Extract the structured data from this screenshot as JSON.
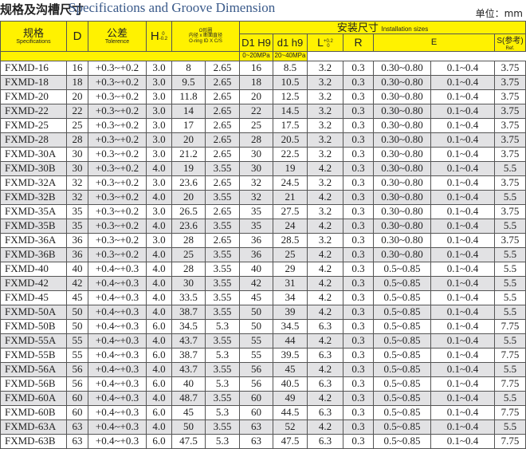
{
  "title": {
    "cn": "规格及沟槽尺寸",
    "en": "Specifications and Groove Dimension",
    "unit": "单位：mm"
  },
  "header": {
    "spec_cn": "规格",
    "spec_en": "Specifications",
    "d": "D",
    "tol_cn": "公差",
    "tol_en": "Tolerence",
    "h": "H",
    "h_sup": "0",
    "h_sub": "-0.2",
    "oring_1": "O形圈",
    "oring_2": "内径 x 断面直径",
    "oring_3": "O-ring ID X C/S",
    "install_cn": "安装尺寸",
    "install_en": "Installation sizes",
    "d1h9": "D1 H9",
    "d1h9_small": "d1 h9",
    "l": "L",
    "l_sup": "+0.2",
    "l_sub": "0",
    "r": "R",
    "e": "E",
    "e1": "0~20MPa",
    "e2": "20~40MPa",
    "s": "S(参考)",
    "s_sub": "Ref."
  },
  "rows": [
    [
      "FXMD-16",
      "16",
      "+0.3~+0.2",
      "3.0",
      "8",
      "2.65",
      "16",
      "8.5",
      "3.2",
      "0.3",
      "0.30~0.80",
      "0.1~0.4",
      "3.75"
    ],
    [
      "FXMD-18",
      "18",
      "+0.3~+0.2",
      "3.0",
      "9.5",
      "2.65",
      "18",
      "10.5",
      "3.2",
      "0.3",
      "0.30~0.80",
      "0.1~0.4",
      "3.75"
    ],
    [
      "FXMD-20",
      "20",
      "+0.3~+0.2",
      "3.0",
      "11.8",
      "2.65",
      "20",
      "12.5",
      "3.2",
      "0.3",
      "0.30~0.80",
      "0.1~0.4",
      "3.75"
    ],
    [
      "FXMD-22",
      "22",
      "+0.3~+0.2",
      "3.0",
      "14",
      "2.65",
      "22",
      "14.5",
      "3.2",
      "0.3",
      "0.30~0.80",
      "0.1~0.4",
      "3.75"
    ],
    [
      "FXMD-25",
      "25",
      "+0.3~+0.2",
      "3.0",
      "17",
      "2.65",
      "25",
      "17.5",
      "3.2",
      "0.3",
      "0.30~0.80",
      "0.1~0.4",
      "3.75"
    ],
    [
      "FXMD-28",
      "28",
      "+0.3~+0.2",
      "3.0",
      "20",
      "2.65",
      "28",
      "20.5",
      "3.2",
      "0.3",
      "0.30~0.80",
      "0.1~0.4",
      "3.75"
    ],
    [
      "FXMD-30A",
      "30",
      "+0.3~+0.2",
      "3.0",
      "21.2",
      "2.65",
      "30",
      "22.5",
      "3.2",
      "0.3",
      "0.30~0.80",
      "0.1~0.4",
      "3.75"
    ],
    [
      "FXMD-30B",
      "30",
      "+0.3~+0.2",
      "4.0",
      "19",
      "3.55",
      "30",
      "19",
      "4.2",
      "0.3",
      "0.30~0.80",
      "0.1~0.4",
      "5.5"
    ],
    [
      "FXMD-32A",
      "32",
      "+0.3~+0.2",
      "3.0",
      "23.6",
      "2.65",
      "32",
      "24.5",
      "3.2",
      "0.3",
      "0.30~0.80",
      "0.1~0.4",
      "3.75"
    ],
    [
      "FXMD-32B",
      "32",
      "+0.3~+0.2",
      "4.0",
      "20",
      "3.55",
      "32",
      "21",
      "4.2",
      "0.3",
      "0.30~0.80",
      "0.1~0.4",
      "5.5"
    ],
    [
      "FXMD-35A",
      "35",
      "+0.3~+0.2",
      "3.0",
      "26.5",
      "2.65",
      "35",
      "27.5",
      "3.2",
      "0.3",
      "0.30~0.80",
      "0.1~0.4",
      "3.75"
    ],
    [
      "FXMD-35B",
      "35",
      "+0.3~+0.2",
      "4.0",
      "23.6",
      "3.55",
      "35",
      "24",
      "4.2",
      "0.3",
      "0.30~0.80",
      "0.1~0.4",
      "5.5"
    ],
    [
      "FXMD-36A",
      "36",
      "+0.3~+0.2",
      "3.0",
      "28",
      "2.65",
      "36",
      "28.5",
      "3.2",
      "0.3",
      "0.30~0.80",
      "0.1~0.4",
      "3.75"
    ],
    [
      "FXMD-36B",
      "36",
      "+0.3~+0.2",
      "4.0",
      "25",
      "3.55",
      "36",
      "25",
      "4.2",
      "0.3",
      "0.30~0.80",
      "0.1~0.4",
      "5.5"
    ],
    [
      "FXMD-40",
      "40",
      "+0.4~+0.3",
      "4.0",
      "28",
      "3.55",
      "40",
      "29",
      "4.2",
      "0.3",
      "0.5~0.85",
      "0.1~0.4",
      "5.5"
    ],
    [
      "FXMD-42",
      "42",
      "+0.4~+0.3",
      "4.0",
      "30",
      "3.55",
      "42",
      "31",
      "4.2",
      "0.3",
      "0.5~0.85",
      "0.1~0.4",
      "5.5"
    ],
    [
      "FXMD-45",
      "45",
      "+0.4~+0.3",
      "4.0",
      "33.5",
      "3.55",
      "45",
      "34",
      "4.2",
      "0.3",
      "0.5~0.85",
      "0.1~0.4",
      "5.5"
    ],
    [
      "FXMD-50A",
      "50",
      "+0.4~+0.3",
      "4.0",
      "38.7",
      "3.55",
      "50",
      "39",
      "4.2",
      "0.3",
      "0.5~0.85",
      "0.1~0.4",
      "5.5"
    ],
    [
      "FXMD-50B",
      "50",
      "+0.4~+0.3",
      "6.0",
      "34.5",
      "5.3",
      "50",
      "34.5",
      "6.3",
      "0.3",
      "0.5~0.85",
      "0.1~0.4",
      "7.75"
    ],
    [
      "FXMD-55A",
      "55",
      "+0.4~+0.3",
      "4.0",
      "43.7",
      "3.55",
      "55",
      "44",
      "4.2",
      "0.3",
      "0.5~0.85",
      "0.1~0.4",
      "5.5"
    ],
    [
      "FXMD-55B",
      "55",
      "+0.4~+0.3",
      "6.0",
      "38.7",
      "5.3",
      "55",
      "39.5",
      "6.3",
      "0.3",
      "0.5~0.85",
      "0.1~0.4",
      "7.75"
    ],
    [
      "FXMD-56A",
      "56",
      "+0.4~+0.3",
      "4.0",
      "43.7",
      "3.55",
      "56",
      "45",
      "4.2",
      "0.3",
      "0.5~0.85",
      "0.1~0.4",
      "5.5"
    ],
    [
      "FXMD-56B",
      "56",
      "+0.4~+0.3",
      "6.0",
      "40",
      "5.3",
      "56",
      "40.5",
      "6.3",
      "0.3",
      "0.5~0.85",
      "0.1~0.4",
      "7.75"
    ],
    [
      "FXMD-60A",
      "60",
      "+0.4~+0.3",
      "4.0",
      "48.7",
      "3.55",
      "60",
      "49",
      "4.2",
      "0.3",
      "0.5~0.85",
      "0.1~0.4",
      "5.5"
    ],
    [
      "FXMD-60B",
      "60",
      "+0.4~+0.3",
      "6.0",
      "45",
      "5.3",
      "60",
      "44.5",
      "6.3",
      "0.3",
      "0.5~0.85",
      "0.1~0.4",
      "7.75"
    ],
    [
      "FXMD-63A",
      "63",
      "+0.4~+0.3",
      "4.0",
      "50",
      "3.55",
      "63",
      "52",
      "4.2",
      "0.3",
      "0.5~0.85",
      "0.1~0.4",
      "5.5"
    ],
    [
      "FXMD-63B",
      "63",
      "+0.4~+0.3",
      "6.0",
      "47.5",
      "5.3",
      "63",
      "47.5",
      "6.3",
      "0.3",
      "0.5~0.85",
      "0.1~0.4",
      "7.75"
    ]
  ],
  "colors": {
    "header_bg": "#fff200",
    "stripe": "#e2e2e4",
    "title_en": "#3a5a8a"
  }
}
